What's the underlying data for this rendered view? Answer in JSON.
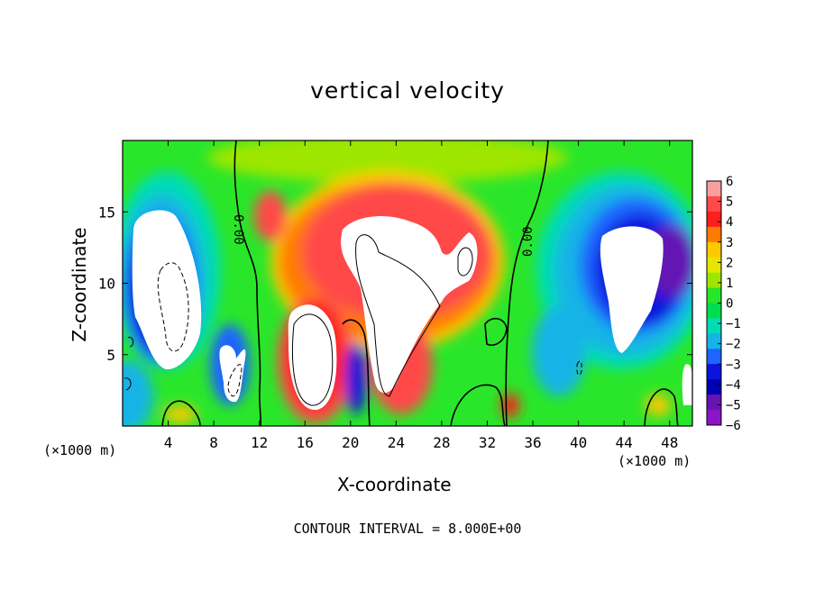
{
  "chart_data": {
    "type": "heatmap",
    "title": "vertical velocity",
    "xlabel": "X-coordinate",
    "ylabel": "Z-coordinate",
    "x_unit_label": "(×1000 m)",
    "x_ticks": [
      4,
      8,
      12,
      16,
      20,
      24,
      28,
      32,
      36,
      40,
      44,
      48
    ],
    "y_ticks": [
      5,
      10,
      15
    ],
    "xlim": [
      0,
      50
    ],
    "ylim": [
      0,
      20
    ],
    "footer": "CONTOUR INTERVAL = 8.000E+00",
    "contour_label": "0.00",
    "colorbar": {
      "ticks": [
        "6",
        "5",
        "4",
        "3",
        "2",
        "1",
        "0",
        "−1",
        "−2",
        "−3",
        "−4",
        "−5",
        "−6"
      ],
      "range": [
        -6,
        6
      ],
      "colors": [
        "#f8a0a0",
        "#ff4a4a",
        "#ff1e1e",
        "#ff7a00",
        "#ffc800",
        "#e6e600",
        "#9ee600",
        "#28e628",
        "#00dc50",
        "#00dcb4",
        "#14b4e6",
        "#1e64ff",
        "#0a14dc",
        "#0000b4",
        "#6414b4",
        "#8c14c8"
      ]
    },
    "grid": false,
    "legend": "colorbar-right"
  }
}
